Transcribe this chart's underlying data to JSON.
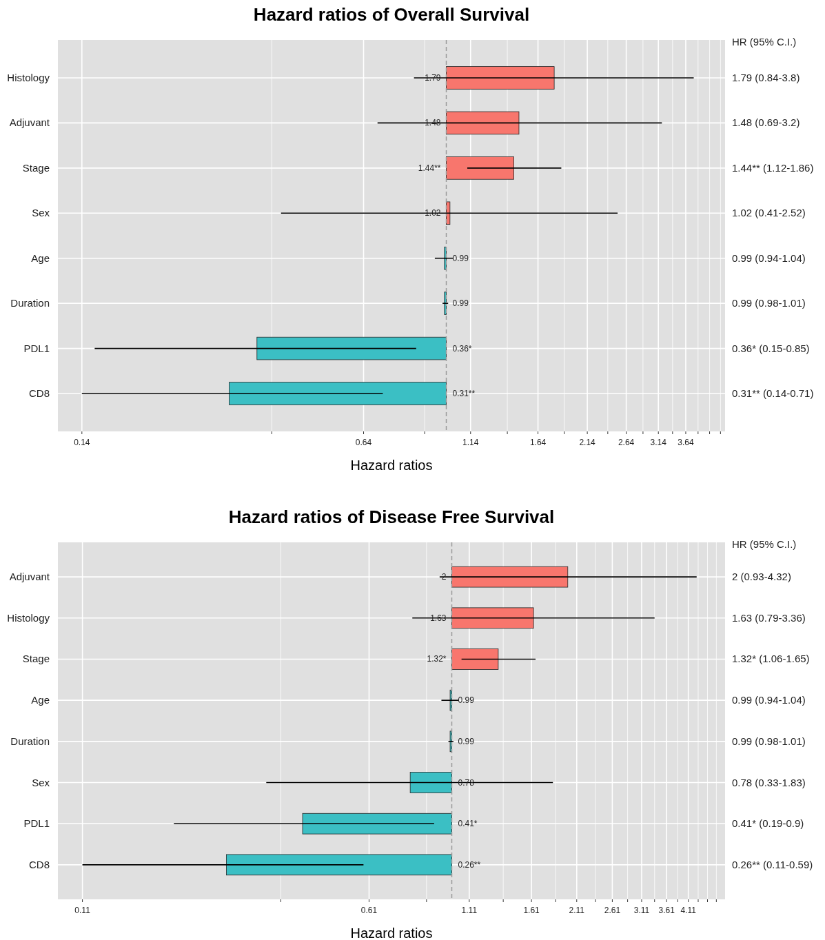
{
  "chart_data": [
    {
      "type": "bar",
      "orientation": "horizontal",
      "title": "Hazard ratios of Overall Survival",
      "xlabel": "Hazard ratios",
      "log": "x",
      "grid": true,
      "categories": [
        "Histology",
        "Adjuvant",
        "Stage",
        "Sex",
        "Age",
        "Duration",
        "PDL1",
        "CD8"
      ],
      "base": [
        1,
        1,
        1,
        1,
        1,
        1,
        1,
        1
      ],
      "values": [
        0.79,
        0.48,
        0.44,
        0.02,
        -0.01,
        -0.01,
        -0.64,
        -0.69
      ],
      "colors": [
        "#f8766d",
        "#f8766d",
        "#f8766d",
        "#f8766d",
        "#3bbfc4",
        "#3bbfc4",
        "#3bbfc4",
        "#3bbfc4"
      ],
      "errors": [
        [
          0.84,
          3.8
        ],
        [
          0.69,
          3.2
        ],
        [
          1.12,
          1.86
        ],
        [
          0.41,
          2.52
        ],
        [
          0.94,
          1.04
        ],
        [
          0.98,
          1.01
        ],
        [
          0.15,
          0.85
        ],
        [
          0.14,
          0.71
        ]
      ],
      "value_labels": [
        "1.79",
        "1.48",
        "1.44**",
        "1.02",
        "0.99",
        "0.99",
        "0.36*",
        "0.31**"
      ],
      "xlim": [
        0.123,
        4.5
      ],
      "xticks": [
        0.14,
        {
          "value": 0.39,
          "label": null
        },
        0.64,
        {
          "value": 0.89,
          "label": null
        },
        1.14,
        {
          "value": 1.39,
          "label": null
        },
        1.64,
        {
          "value": 1.89,
          "label": null
        },
        2.14,
        {
          "value": 2.39,
          "label": null
        },
        2.64,
        {
          "value": 2.89,
          "label": null
        },
        3.14,
        {
          "value": 3.39,
          "label": null
        },
        3.64,
        {
          "value": 3.89,
          "label": null
        },
        {
          "value": 4.14,
          "label": null
        },
        {
          "value": 4.39,
          "label": null
        }
      ],
      "ref_lines": [
        {
          "axis": "x",
          "value": 1,
          "line_style": "dashed",
          "color": "#999999"
        }
      ],
      "annotations": [
        "HR (95% C.I.)",
        "1.79 (0.84-3.8)",
        "1.48 (0.69-3.2)",
        "1.44** (1.12-1.86)",
        "1.02 (0.41-2.52)",
        "0.99 (0.94-1.04)",
        "0.99 (0.98-1.01)",
        "0.36* (0.15-0.85)",
        "0.31** (0.14-0.71)"
      ]
    },
    {
      "type": "bar",
      "orientation": "horizontal",
      "title": "Hazard ratios of Disease Free Survival",
      "xlabel": "Hazard ratios",
      "log": "x",
      "grid": true,
      "categories": [
        "Adjuvant",
        "Histology",
        "Stage",
        "Age",
        "Duration",
        "Sex",
        "PDL1",
        "CD8"
      ],
      "base": [
        1,
        1,
        1,
        1,
        1,
        1,
        1,
        1
      ],
      "values": [
        1,
        0.63,
        0.32,
        -0.01,
        -0.01,
        -0.22,
        -0.59,
        -0.74
      ],
      "colors": [
        "#f8766d",
        "#f8766d",
        "#f8766d",
        "#3bbfc4",
        "#3bbfc4",
        "#3bbfc4",
        "#3bbfc4",
        "#3bbfc4"
      ],
      "errors": [
        [
          0.93,
          4.32
        ],
        [
          0.79,
          3.36
        ],
        [
          1.06,
          1.65
        ],
        [
          0.94,
          1.04
        ],
        [
          0.98,
          1.01
        ],
        [
          0.33,
          1.83
        ],
        [
          0.19,
          0.9
        ],
        [
          0.11,
          0.59
        ]
      ],
      "value_labels": [
        "2",
        "1.63",
        "1.32*",
        "0.99",
        "0.99",
        "0.78",
        "0.41*",
        "0.26**"
      ],
      "xlim": [
        0.095,
        5.12
      ],
      "xticks": [
        0.11,
        {
          "value": 0.36,
          "label": null
        },
        0.61,
        {
          "value": 0.86,
          "label": null
        },
        1.11,
        {
          "value": 1.36,
          "label": null
        },
        1.61,
        {
          "value": 1.86,
          "label": null
        },
        2.11,
        {
          "value": 2.36,
          "label": null
        },
        2.61,
        {
          "value": 2.86,
          "label": null
        },
        3.11,
        {
          "value": 3.36,
          "label": null
        },
        3.61,
        {
          "value": 3.86,
          "label": null
        },
        4.11,
        {
          "value": 4.36,
          "label": null
        },
        {
          "value": 4.61,
          "label": null
        },
        {
          "value": 4.86,
          "label": null
        }
      ],
      "ref_lines": [
        {
          "axis": "x",
          "value": 1,
          "line_style": "dashed",
          "color": "#999999"
        }
      ],
      "annotations": [
        "HR (95% C.I.)",
        "2 (0.93-4.32)",
        "1.63 (0.79-3.36)",
        "1.32* (1.06-1.65)",
        "0.99 (0.94-1.04)",
        "0.99 (0.98-1.01)",
        "0.78 (0.33-1.83)",
        "0.41* (0.19-0.9)",
        "0.26** (0.11-0.59)"
      ]
    }
  ]
}
